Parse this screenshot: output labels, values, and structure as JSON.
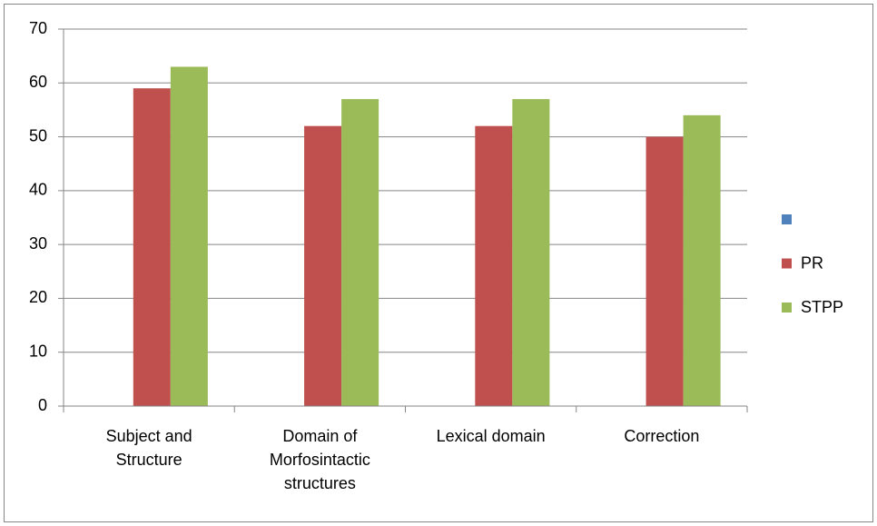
{
  "chart_data": {
    "type": "bar",
    "categories": [
      "Subject and Structure",
      "Domain of Morfosintactic structures",
      "Lexical domain",
      "Correction"
    ],
    "series": [
      {
        "name": null,
        "color": "#4f81bd",
        "values": [
          null,
          null,
          null,
          null
        ]
      },
      {
        "name": "PR",
        "color": "#c0504d",
        "values": [
          59,
          52,
          52,
          50
        ]
      },
      {
        "name": "STPP",
        "color": "#9bbb59",
        "values": [
          63,
          57,
          57,
          54
        ]
      }
    ],
    "ylim": [
      0,
      70
    ],
    "yticks": [
      0,
      10,
      20,
      30,
      40,
      50,
      60,
      70
    ],
    "grid": true,
    "legend": "right"
  }
}
